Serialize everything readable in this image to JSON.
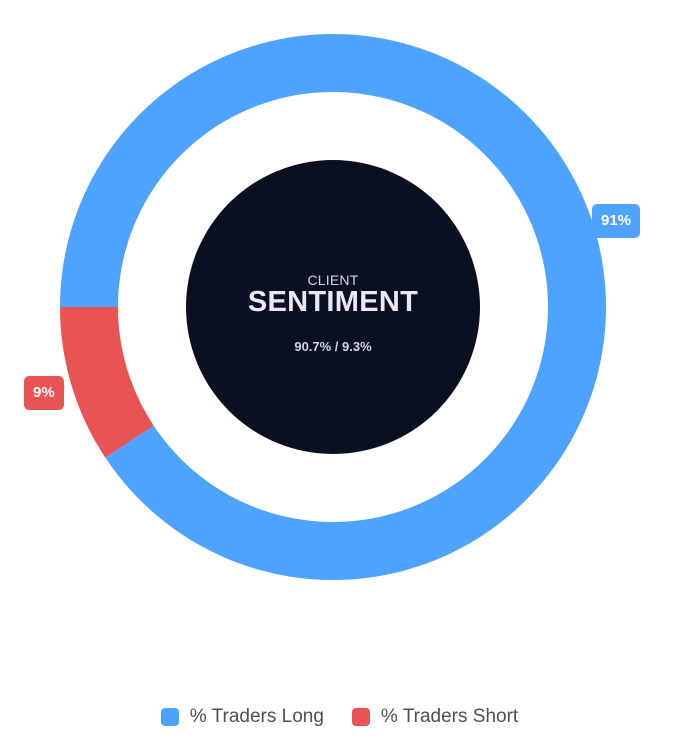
{
  "center": {
    "label": "CLIENT",
    "title": "SENTIMENT",
    "ratio": "90.7% / 9.3%"
  },
  "chart_data": {
    "type": "pie",
    "categories": [
      "% Traders Long",
      "% Traders Short"
    ],
    "values": [
      90.7,
      9.3
    ],
    "data_labels": [
      "91%",
      "9%"
    ],
    "colors": [
      "#4da3ff",
      "#e85453"
    ],
    "legend_position": "bottom"
  },
  "legend": {
    "items": [
      {
        "label": "% Traders Long",
        "color": "#4da3ff"
      },
      {
        "label": "% Traders Short",
        "color": "#e85453"
      }
    ]
  },
  "colors": {
    "center_bg": "#0b1020"
  }
}
